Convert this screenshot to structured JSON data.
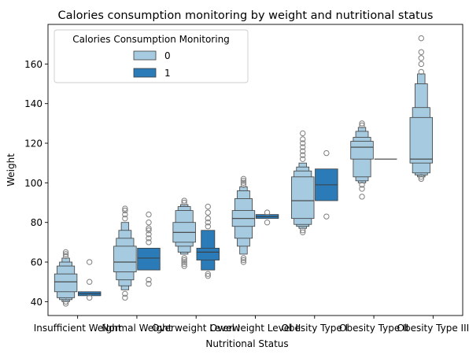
{
  "chart_data": {
    "type": "boxen",
    "title": "Calories consumption monitoring by weight and nutritional status",
    "xlabel": "Nutritional Status",
    "ylabel": "Weight",
    "ylim": [
      33,
      180
    ],
    "yticks": [
      40,
      60,
      80,
      100,
      120,
      140,
      160
    ],
    "grid": false,
    "legend": {
      "title": "Calories Consumption Monitoring",
      "placement": "top-left",
      "entries": [
        "0",
        "1"
      ]
    },
    "colors": {
      "0": "#a6cbe0",
      "1": "#2b7bb9",
      "edge": "#3d3d3d",
      "outlier": "#7f7f7f"
    },
    "categories": [
      "Insufficient Weight",
      "Normal Weight",
      "Overweight Level I",
      "Overweight Level II",
      "Obesity Type I",
      "Obesity Type II",
      "Obesity Type III"
    ],
    "series": [
      {
        "name": "0",
        "boxes": [
          {
            "median": 50,
            "levels": [
              [
                45,
                54
              ],
              [
                42,
                58
              ],
              [
                41,
                60
              ],
              [
                40,
                62
              ]
            ],
            "outliers": [
              39,
              40,
              63,
              64,
              65
            ]
          },
          {
            "median": 60,
            "levels": [
              [
                55,
                68
              ],
              [
                51,
                72
              ],
              [
                48,
                76
              ],
              [
                46,
                80
              ]
            ],
            "outliers": [
              42,
              44,
              82,
              84,
              86,
              87
            ]
          },
          {
            "median": 75,
            "levels": [
              [
                70,
                80
              ],
              [
                68,
                86
              ],
              [
                65,
                88
              ],
              [
                64,
                89
              ]
            ],
            "outliers": [
              58,
              59,
              60,
              61,
              62,
              90,
              91
            ]
          },
          {
            "median": 82,
            "levels": [
              [
                78,
                86
              ],
              [
                72,
                92
              ],
              [
                68,
                96
              ],
              [
                64,
                98
              ]
            ],
            "outliers": [
              60,
              61,
              62,
              99,
              100,
              101,
              102
            ]
          },
          {
            "median": 91,
            "levels": [
              [
                82,
                103
              ],
              [
                79,
                106
              ],
              [
                78,
                108
              ],
              [
                77,
                110
              ]
            ],
            "outliers": [
              75,
              76,
              112,
              114,
              116,
              118,
              120,
              122,
              125
            ]
          },
          {
            "median": 118,
            "levels": [
              [
                112,
                121
              ],
              [
                103,
                123
              ],
              [
                101,
                126
              ],
              [
                100,
                128
              ]
            ],
            "outliers": [
              93,
              97,
              99,
              129,
              130
            ]
          },
          {
            "median": 112,
            "levels": [
              [
                110,
                133
              ],
              [
                105,
                138
              ],
              [
                104,
                150
              ],
              [
                103,
                155
              ]
            ],
            "outliers": [
              102,
              103,
              156,
              160,
              163,
              166,
              173
            ]
          }
        ]
      },
      {
        "name": "1",
        "boxes": [
          {
            "median": 44,
            "levels": [
              [
                43,
                45
              ]
            ],
            "outliers": [
              42,
              50,
              60
            ]
          },
          {
            "median": 62,
            "levels": [
              [
                56,
                67
              ]
            ],
            "outliers": [
              49,
              51,
              70,
              72,
              74,
              76,
              77,
              80,
              84
            ]
          },
          {
            "median": 65,
            "levels": [
              [
                61,
                67
              ],
              [
                56,
                76
              ]
            ],
            "outliers": [
              53,
              54,
              78,
              80,
              82,
              85,
              88
            ]
          },
          {
            "median": 83,
            "levels": [
              [
                82,
                84
              ]
            ],
            "outliers": [
              80,
              85
            ]
          },
          {
            "median": 99,
            "levels": [
              [
                91,
                107
              ]
            ],
            "outliers": [
              83,
              115
            ]
          },
          {
            "median": 112,
            "levels": [],
            "outliers": []
          },
          null
        ]
      }
    ]
  }
}
